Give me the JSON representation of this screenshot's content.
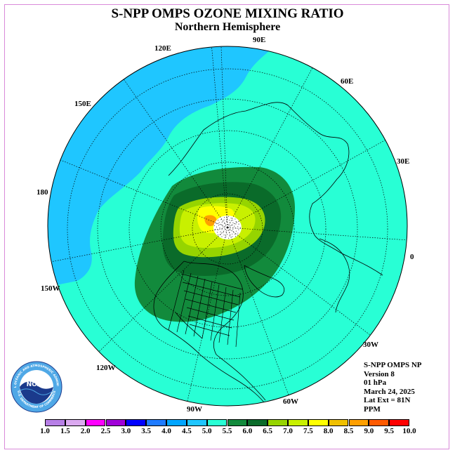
{
  "title": "S-NPP OMPS OZONE MIXING RATIO",
  "subtitle": "Northern Hemisphere",
  "longitude_labels": [
    "90E",
    "60E",
    "30E",
    "0",
    "30W",
    "60W",
    "90W",
    "120W",
    "150W",
    "180",
    "150E",
    "120E"
  ],
  "info": {
    "instrument": "S-NPP OMPS NP",
    "version": "Version 8",
    "level": "01 hPa",
    "date": "March 24, 2025",
    "lat_ext": "Lat Ext = 81N",
    "units": "PPM"
  },
  "logo": {
    "text": "NOAA",
    "ring_top": "NATIONAL OCEANIC AND ATMOSPHERIC ADMINISTRATION",
    "ring_bottom": "U.S. DEPARTMENT OF COMMERCE",
    "colors": {
      "dark": "#1b3a8c",
      "light": "#4fa8e6",
      "white": "#ffffff"
    }
  },
  "colorbar": {
    "labels": [
      "1.0",
      "1.5",
      "2.0",
      "2.5",
      "3.0",
      "3.5",
      "4.0",
      "4.5",
      "5.0",
      "5.5",
      "6.0",
      "6.5",
      "7.0",
      "7.5",
      "8.0",
      "8.5",
      "9.0",
      "9.5",
      "10.0"
    ],
    "colors": [
      "#b77fe6",
      "#dba9f0",
      "#ff00ff",
      "#a000d8",
      "#0000ff",
      "#1e7bff",
      "#00a5ff",
      "#1fc6ff",
      "#28ffd5",
      "#128a3c",
      "#0a6b2a",
      "#96d400",
      "#c8f000",
      "#ffff00",
      "#f0c000",
      "#ff9f00",
      "#ff5a00",
      "#ff0000",
      "#8b5a3c"
    ]
  },
  "field_colors": {
    "c40": "#1fc6ff",
    "c45": "#28ffd5",
    "c55": "#128a3c",
    "c60": "#0a6b2a",
    "c65": "#96d400",
    "c70": "#c8f000",
    "c75": "#ffff00",
    "c80": "#f0c000",
    "c85": "#ff9f00",
    "nodata": "#ffffff"
  }
}
